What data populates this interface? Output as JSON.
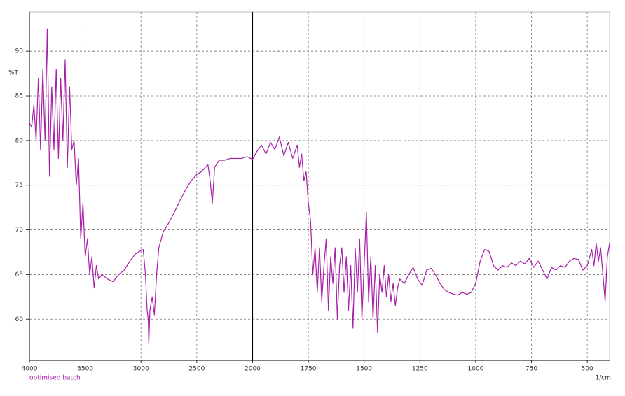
{
  "chart_data": {
    "type": "line",
    "x_label": "1/cm",
    "y_label": "%T",
    "xlim": [
      4000,
      400
    ],
    "ylim": [
      55.4,
      94.4
    ],
    "x_scale_break": 2000,
    "x_scale_ratio": 2,
    "xticks": [
      4000,
      3500,
      3000,
      2500,
      2000,
      1750,
      1500,
      1250,
      1000,
      750,
      500
    ],
    "yticks": [
      60,
      65,
      70,
      75,
      80,
      85,
      90
    ],
    "grid": true,
    "x": [
      4000,
      3980,
      3960,
      3940,
      3920,
      3900,
      3880,
      3860,
      3840,
      3820,
      3800,
      3780,
      3760,
      3740,
      3720,
      3700,
      3680,
      3660,
      3640,
      3620,
      3600,
      3580,
      3560,
      3540,
      3520,
      3500,
      3480,
      3460,
      3440,
      3420,
      3400,
      3380,
      3350,
      3300,
      3250,
      3200,
      3150,
      3100,
      3050,
      3000,
      2980,
      2960,
      2945,
      2935,
      2930,
      2920,
      2900,
      2880,
      2860,
      2840,
      2800,
      2750,
      2700,
      2650,
      2600,
      2550,
      2500,
      2460,
      2400,
      2380,
      2360,
      2340,
      2300,
      2250,
      2200,
      2100,
      2050,
      2000,
      1980,
      1960,
      1940,
      1920,
      1900,
      1880,
      1860,
      1840,
      1820,
      1800,
      1790,
      1780,
      1770,
      1760,
      1750,
      1740,
      1730,
      1720,
      1710,
      1700,
      1690,
      1680,
      1670,
      1660,
      1650,
      1640,
      1630,
      1620,
      1610,
      1600,
      1590,
      1580,
      1570,
      1560,
      1550,
      1540,
      1530,
      1520,
      1510,
      1500,
      1490,
      1480,
      1470,
      1460,
      1450,
      1440,
      1430,
      1420,
      1410,
      1400,
      1390,
      1380,
      1370,
      1360,
      1350,
      1340,
      1320,
      1300,
      1280,
      1260,
      1240,
      1220,
      1200,
      1180,
      1160,
      1140,
      1120,
      1100,
      1080,
      1060,
      1040,
      1020,
      1000,
      980,
      960,
      940,
      920,
      900,
      880,
      860,
      840,
      820,
      800,
      780,
      760,
      740,
      720,
      700,
      680,
      660,
      640,
      620,
      600,
      580,
      560,
      540,
      520,
      500,
      480,
      470,
      460,
      450,
      440,
      430,
      420,
      410,
      400
    ],
    "series": [
      {
        "name": "optimised batch",
        "color": "#a81ea8",
        "values": [
          82,
          81.5,
          84,
          80,
          87,
          79,
          88,
          80,
          92.5,
          76,
          86,
          79,
          88,
          78,
          87,
          80,
          89,
          77,
          86,
          79,
          80,
          75,
          78,
          69,
          73,
          67,
          69,
          65,
          67,
          63.5,
          66,
          64.5,
          65,
          64.5,
          64.2,
          65,
          65.5,
          66.5,
          67.3,
          67.7,
          67.8,
          65,
          61,
          60,
          57.2,
          61,
          62.5,
          60.5,
          65,
          68,
          69.8,
          70.8,
          72,
          73.3,
          74.5,
          75.5,
          76.2,
          76.5,
          77.3,
          75.5,
          73,
          77,
          77.8,
          77.8,
          78,
          78,
          78.2,
          77.9,
          78.8,
          79.5,
          78.5,
          79.8,
          79,
          80.4,
          78.3,
          79.8,
          78,
          79.5,
          77,
          78.5,
          75.5,
          76.5,
          73,
          71,
          65,
          68,
          63,
          68,
          62,
          66,
          69,
          61,
          67,
          64,
          68,
          60,
          66,
          68,
          63,
          67,
          61,
          66,
          59,
          68,
          63,
          69,
          60,
          66,
          72,
          62,
          67,
          60,
          66,
          58.5,
          65,
          63,
          66,
          62.5,
          65,
          62,
          64,
          61.5,
          63.5,
          64.5,
          64,
          65,
          65.8,
          64.5,
          63.8,
          65.5,
          65.7,
          65,
          64,
          63.3,
          63,
          62.8,
          62.7,
          63,
          62.8,
          63,
          64,
          66.5,
          67.8,
          67.6,
          66,
          65.5,
          66,
          65.8,
          66.3,
          66,
          66.5,
          66.2,
          66.8,
          65.8,
          66.5,
          65.5,
          64.5,
          65.8,
          65.5,
          66,
          65.8,
          66.5,
          66.8,
          66.7,
          65.5,
          66,
          67.8,
          66,
          68.5,
          66.5,
          68,
          65,
          62,
          67,
          68.5
        ]
      }
    ]
  }
}
